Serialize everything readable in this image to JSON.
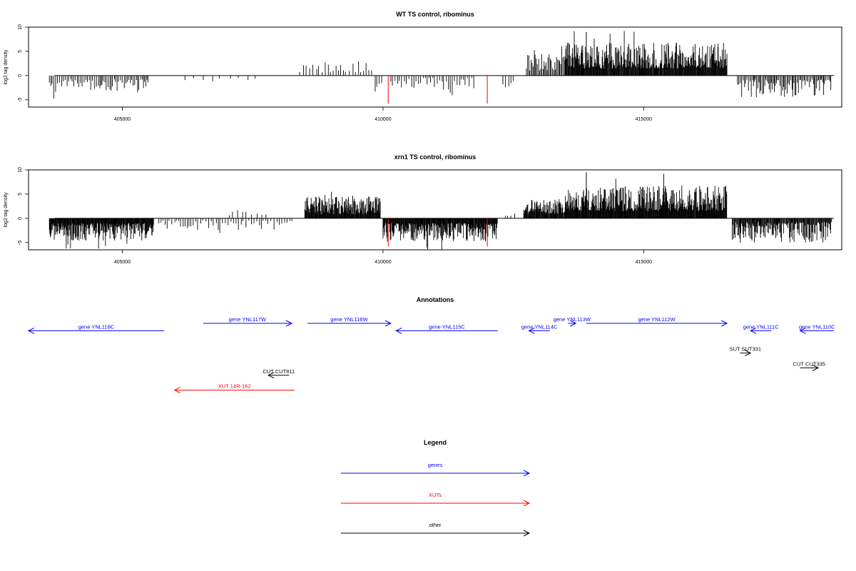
{
  "colors": {
    "gene": "#0000ff",
    "xut": "#ff0000",
    "other": "#000000",
    "highlight": "#ff0000",
    "bars": "#000000"
  },
  "chart_data": [
    {
      "type": "bar",
      "title": "WT TS control, ribominus",
      "ylabel": "log2 tag density",
      "xlim": [
        403200,
        418800
      ],
      "ylim": [
        -6.5,
        10
      ],
      "xticks": [
        405000,
        410000,
        415000
      ],
      "xtick_labels": [
        "405000",
        "410000",
        "415000"
      ],
      "yticks": [
        -5,
        0,
        5,
        10
      ],
      "ytick_labels": [
        "-5",
        "0",
        "5",
        "10"
      ],
      "highlights": [
        {
          "x": 410100,
          "y": -5.8
        },
        {
          "x": 412000,
          "y": -5.8
        }
      ],
      "regions": [
        {
          "from": 403600,
          "to": 405500,
          "sign": -1,
          "min": 0.8,
          "max": 3.5,
          "step": 30,
          "spike": null
        },
        {
          "from": 406200,
          "to": 407700,
          "sign": -1,
          "min": 0.4,
          "max": 1.2,
          "step": 160,
          "spike": null
        },
        {
          "from": 408400,
          "to": 409800,
          "sign": 1,
          "min": 0.6,
          "max": 3.2,
          "step": 55,
          "spike": null
        },
        {
          "from": 409850,
          "to": 410000,
          "sign": -1,
          "min": 1.5,
          "max": 4.2,
          "step": 40,
          "spike": null
        },
        {
          "from": 410150,
          "to": 411750,
          "sign": -1,
          "min": 0.5,
          "max": 3.0,
          "step": 40,
          "spike": null
        },
        {
          "from": 412300,
          "to": 412500,
          "sign": -1,
          "min": 1.0,
          "max": 2.4,
          "step": 60,
          "spike": null
        },
        {
          "from": 412750,
          "to": 413500,
          "sign": 1,
          "min": 1.0,
          "max": 4.5,
          "step": 20,
          "spike": null
        },
        {
          "from": 413500,
          "to": 416600,
          "sign": 1,
          "min": 1.5,
          "max": 6.8,
          "step": 10,
          "spike": {
            "x": 413900,
            "y": 9.0
          }
        },
        {
          "from": 416800,
          "to": 418600,
          "sign": -1,
          "min": 0.8,
          "max": 4.5,
          "step": 22,
          "spike": null
        }
      ]
    },
    {
      "type": "bar",
      "title": "xrn1 TS control, ribominus",
      "ylabel": "log2 tag density",
      "xlim": [
        403200,
        418800
      ],
      "ylim": [
        -6.5,
        10
      ],
      "xticks": [
        405000,
        410000,
        415000
      ],
      "xtick_labels": [
        "405000",
        "410000",
        "415000"
      ],
      "yticks": [
        -5,
        0,
        5,
        10
      ],
      "ytick_labels": [
        "-5",
        "0",
        "5",
        "10"
      ],
      "highlights": [
        {
          "x": 410100,
          "y": -5.8
        },
        {
          "x": 412000,
          "y": -5.8
        }
      ],
      "regions": [
        {
          "from": 403600,
          "to": 405600,
          "sign": -1,
          "min": 1.0,
          "max": 4.6,
          "step": 9,
          "spike": null
        },
        {
          "from": 405700,
          "to": 408300,
          "sign": -1,
          "min": 0.4,
          "max": 2.4,
          "step": 45,
          "spike": null
        },
        {
          "from": 407050,
          "to": 407800,
          "sign": 1,
          "min": 0.5,
          "max": 1.8,
          "step": 90,
          "spike": null
        },
        {
          "from": 408500,
          "to": 409950,
          "sign": 1,
          "min": 0.8,
          "max": 4.5,
          "step": 9,
          "spike": null
        },
        {
          "from": 410000,
          "to": 412200,
          "sign": -1,
          "min": 1.0,
          "max": 4.8,
          "step": 9,
          "spike": null
        },
        {
          "from": 412350,
          "to": 412600,
          "sign": 1,
          "min": 0.5,
          "max": 1.5,
          "step": 60,
          "spike": null
        },
        {
          "from": 412700,
          "to": 413500,
          "sign": 1,
          "min": 1.0,
          "max": 4.0,
          "step": 10,
          "spike": null
        },
        {
          "from": 413500,
          "to": 416600,
          "sign": 1,
          "min": 1.5,
          "max": 6.8,
          "step": 9,
          "spike": {
            "x": 413900,
            "y": 9.5
          }
        },
        {
          "from": 416700,
          "to": 418600,
          "sign": -1,
          "min": 0.8,
          "max": 5.0,
          "step": 12,
          "spike": null
        }
      ]
    }
  ],
  "annotations": {
    "title": "Annotations",
    "features": [
      {
        "label": "gene YNL118C",
        "type": "gene",
        "start": 403200,
        "end": 405800,
        "strand": "-",
        "row": 1
      },
      {
        "label": "gene YNL117W",
        "type": "gene",
        "start": 406550,
        "end": 408250,
        "strand": "+",
        "row": 0
      },
      {
        "label": "gene YNL116W",
        "type": "gene",
        "start": 408550,
        "end": 410150,
        "strand": "+",
        "row": 0
      },
      {
        "label": "gene YNL115C",
        "type": "gene",
        "start": 410250,
        "end": 412200,
        "strand": "-",
        "row": 1
      },
      {
        "label": "gene YNL113W",
        "type": "gene",
        "start": 413550,
        "end": 413700,
        "strand": "+",
        "row": 0
      },
      {
        "label": "gene YNL114C",
        "type": "gene",
        "start": 412800,
        "end": 413200,
        "strand": "-",
        "row": 1
      },
      {
        "label": "gene YNL112W",
        "type": "gene",
        "start": 413900,
        "end": 416600,
        "strand": "+",
        "row": 0
      },
      {
        "label": "gene YNL111C",
        "type": "gene",
        "start": 417050,
        "end": 417450,
        "strand": "-",
        "row": 1
      },
      {
        "label": "gene YNL110C",
        "type": "gene",
        "start": 418000,
        "end": 418650,
        "strand": "-",
        "row": 1
      },
      {
        "label": "SUT SUT331",
        "type": "other",
        "start": 416850,
        "end": 417050,
        "strand": "+",
        "row": 4
      },
      {
        "label": "CUT CUT335",
        "type": "other",
        "start": 418000,
        "end": 418350,
        "strand": "+",
        "row": 6
      },
      {
        "label": "CUT CUT811",
        "type": "other",
        "start": 407800,
        "end": 408200,
        "strand": "-",
        "row": 7
      },
      {
        "label": "XUT 14R-162",
        "type": "xut",
        "start": 406000,
        "end": 408300,
        "strand": "-",
        "row": 9
      }
    ]
  },
  "legend": {
    "title": "Legend",
    "items": [
      {
        "label": "genes",
        "type": "gene"
      },
      {
        "label": "XUTs",
        "type": "xut"
      },
      {
        "label": "other",
        "type": "other"
      }
    ]
  }
}
